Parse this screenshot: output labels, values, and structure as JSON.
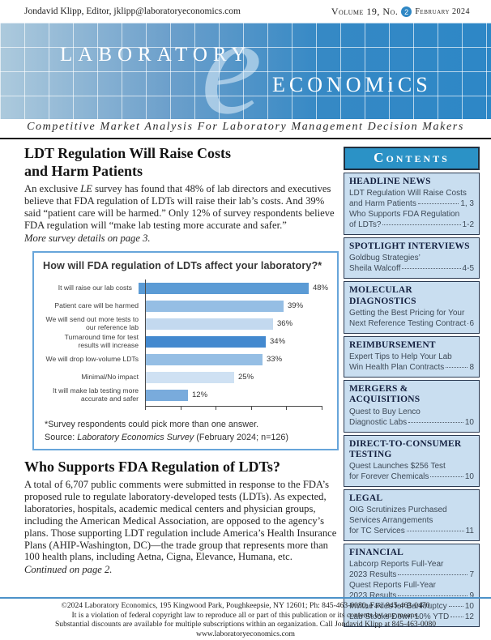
{
  "masthead": {
    "editor_line": "Jondavid Klipp, Editor, jklipp@laboratoryeconomics.com",
    "volume_prefix": "Volume 19, No.",
    "issue_number": "2",
    "issue_date": "February 2024",
    "logo_word1": "LABORATORY",
    "logo_script": "e",
    "logo_word2": "ECONOMiCS",
    "tagline": "Competitive Market Analysis For Laboratory Management Decision Makers"
  },
  "colors": {
    "banner_blue": "#2d87c6",
    "contents_header_blue": "#2b92c6",
    "sidebar_section_bg": "#c9def0",
    "chart_border_blue": "#67a5da",
    "footer_rule_blue": "#4c92c9"
  },
  "article1": {
    "title_line1": "LDT Regulation Will Raise Costs",
    "title_line2": "and Harm Patients",
    "body_pre": "An exclusive ",
    "body_italic": "LE",
    "body_post": " survey has found that 48% of lab directors and executives believe that FDA regulation of LDTs will raise their lab’s costs. And 39% said “patient care will be harmed.” Only 12% of survey respondents believe FDA regulation will “make lab testing more accurate and safer.”",
    "note": "More survey details on page 3."
  },
  "chart_data": {
    "type": "bar",
    "orientation": "horizontal",
    "title": "How will FDA regulation of LDTs affect your laboratory?*",
    "categories": [
      "It will raise our lab costs",
      "Patient care will be harmed",
      "We will send out more tests to our reference lab",
      "Turnaround time for test results will increase",
      "We will drop low-volume LDTs",
      "Minimal/No impact",
      "It will make lab testing more accurate and safer"
    ],
    "values": [
      48,
      39,
      36,
      34,
      33,
      25,
      12
    ],
    "value_suffix": "%",
    "bar_colors": [
      "#5b9bd5",
      "#95bee4",
      "#c3d9ef",
      "#4389cf",
      "#95bee4",
      "#cfe1f3",
      "#79abdc"
    ],
    "xlim": [
      0,
      50
    ],
    "grid": false,
    "footnote": "*Survey respondents could pick more than one answer.",
    "source_prefix": "Source: ",
    "source_italic": "Laboratory Economics Survey",
    "source_suffix": " (February 2024; n=126)"
  },
  "article2": {
    "title": "Who Supports FDA Regulation of LDTs?",
    "body": "A total of 6,707 public comments were submitted in response to the FDA’s proposed rule to regulate laboratory-developed tests (LDTs). As expected, laboratories, hospitals, academic medical centers and physician groups, including the American Medical Association, are opposed to the agency’s plans. Those supporting LDT regulation include America’s Health Insurance Plans (AHIP-Washington, DC)—the trade group that represents more than 100 health plans, including Aetna, Cigna, Elevance, Humana, etc.",
    "note": "Continued on page 2."
  },
  "sidebar": {
    "header": "Contents",
    "sections": [
      {
        "heading": "HEADLINE NEWS",
        "items": [
          {
            "lines": [
              "LDT Regulation Will Raise Costs",
              "and Harm Patients"
            ],
            "page": "1, 3"
          },
          {
            "lines": [
              "Who Supports FDA Regulation",
              "of LDTs?"
            ],
            "page": "1-2"
          }
        ]
      },
      {
        "heading": "SPOTLIGHT INTERVIEWS",
        "items": [
          {
            "lines": [
              "Goldbug Strategies’",
              "Sheila Walcoff"
            ],
            "page": "4-5"
          }
        ]
      },
      {
        "heading": "MOLECULAR DIAGNOSTICS",
        "items": [
          {
            "lines": [
              "Getting the Best Pricing for Your",
              "Next Reference Testing Contract"
            ],
            "page": "6"
          }
        ]
      },
      {
        "heading": "REIMBURSEMENT",
        "items": [
          {
            "lines": [
              "Expert Tips to Help Your Lab",
              "Win Health Plan Contracts"
            ],
            "page": "8"
          }
        ]
      },
      {
        "heading": "MERGERS & ACQUISITIONS",
        "items": [
          {
            "lines": [
              "Quest to Buy Lenco",
              "Diagnostic Labs"
            ],
            "page": "10"
          }
        ]
      },
      {
        "heading": "DIRECT-TO-CONSUMER TESTING",
        "items": [
          {
            "lines": [
              "Quest Launches $256 Test",
              "for Forever Chemicals"
            ],
            "page": "10"
          }
        ]
      },
      {
        "heading": "LEGAL",
        "items": [
          {
            "lines": [
              "OIG Scrutinizes Purchased",
              "Services Arrangements",
              "for TC Services"
            ],
            "page": "11"
          }
        ]
      },
      {
        "heading": "FINANCIAL",
        "items": [
          {
            "lines": [
              "Labcorp Reports Full-Year",
              "2023 Results"
            ],
            "page": "7"
          },
          {
            "lines": [
              "Quest Reports Full-Year",
              "2023 Results"
            ],
            "page": "9"
          },
          {
            "lines": [
              "Invitae Files for Bankruptcy"
            ],
            "page": "10"
          },
          {
            "lines": [
              "Lab Stocks Down 10% YTD"
            ],
            "page": "12"
          }
        ]
      }
    ]
  },
  "footer": {
    "line1": "©2024 Laboratory Economics, 195 Kingwood Park, Poughkeepsie, NY 12601; Ph: 845-463-0080; Fax: 845-463-0470",
    "line2": "It is a violation of federal copyright law to reproduce all or part of this publication or its contents by any means.",
    "line3": "Substantial discounts are available for multiple subscriptions within an organization. Call Jondavid Klipp at 845-463-0080",
    "line4": "www.laboratoryeconomics.com"
  }
}
